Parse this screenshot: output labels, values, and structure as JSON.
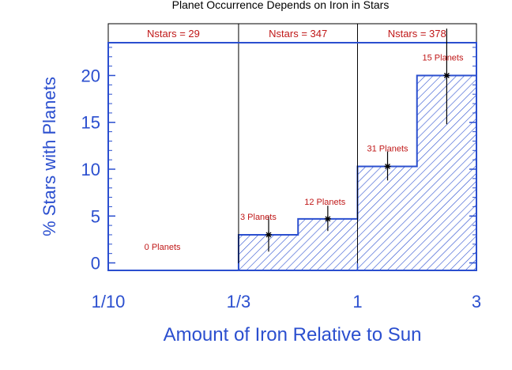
{
  "chart_data": {
    "type": "bar",
    "title": "Planet Occurrence Depends on Iron in Stars",
    "xlabel": "Amount of Iron Relative to Sun",
    "ylabel": "% Stars with Planets",
    "x_scale": "log",
    "xlim": [
      0.1,
      3
    ],
    "ylim": [
      -0.8,
      23.5
    ],
    "x_ticks": [
      {
        "value": 0.1,
        "label": "1/10"
      },
      {
        "value": 0.3333,
        "label": "1/3"
      },
      {
        "value": 1,
        "label": "1"
      },
      {
        "value": 3,
        "label": "3"
      }
    ],
    "y_ticks": [
      {
        "value": 0,
        "label": "0"
      },
      {
        "value": 5,
        "label": "5"
      },
      {
        "value": 10,
        "label": "10"
      },
      {
        "value": 15,
        "label": "15"
      },
      {
        "value": 20,
        "label": "20"
      }
    ],
    "bins": [
      {
        "x0": 0.1,
        "x1": 0.3333,
        "value": 0
      },
      {
        "x0": 0.3333,
        "x1": 0.5774,
        "value": 3.0,
        "err_low": 1.8,
        "err_high": 2.0,
        "x_center": 0.44
      },
      {
        "x0": 0.5774,
        "x1": 1.0,
        "value": 4.7,
        "err_low": 1.3,
        "err_high": 1.4,
        "x_center": 0.76
      },
      {
        "x0": 1.0,
        "x1": 1.7321,
        "value": 10.3,
        "err_low": 1.5,
        "err_high": 1.6,
        "x_center": 1.32
      },
      {
        "x0": 1.7321,
        "x1": 3.0,
        "value": 20.0,
        "err_low": 5.2,
        "err_high": 5.0,
        "x_center": 2.28
      }
    ],
    "planet_labels": [
      {
        "text": "0 Planets",
        "x": 0.165,
        "y": 1.4
      },
      {
        "text": "3 Planets",
        "x": 0.4,
        "y": 4.6
      },
      {
        "text": "12 Planets",
        "x": 0.74,
        "y": 6.2
      },
      {
        "text": "31 Planets",
        "x": 1.32,
        "y": 11.9
      },
      {
        "text": "15 Planets",
        "x": 2.2,
        "y": 21.6
      }
    ],
    "region_labels": [
      {
        "text": "Nstars = 29",
        "x0": 0.1,
        "x1": 0.3333
      },
      {
        "text": "Nstars = 347",
        "x0": 0.3333,
        "x1": 1.0
      },
      {
        "text": "Nstars = 378",
        "x0": 1.0,
        "x1": 3.0
      }
    ],
    "dividers": [
      0.3333,
      1.0
    ],
    "colors": {
      "axis": "#2b4fcf",
      "fill": "#2b4fcf",
      "annotation": "#c01818",
      "title": "#000000"
    }
  }
}
